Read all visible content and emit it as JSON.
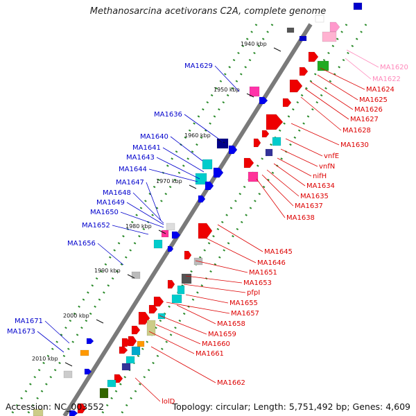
{
  "title": "Methanosarcina acetivorans C2A, complete genome",
  "accession": "Accession: NC_003552",
  "summary": "Topology: circular; Length: 5,751,492 bp; Genes: 4,609",
  "colors": {
    "blue_label": "#0000cc",
    "red_label": "#dd0000",
    "pink_label": "#ff88bb",
    "backbone": "#777777"
  },
  "ruler": [
    {
      "label": "1940 kbp"
    },
    {
      "label": "1950 kbp"
    },
    {
      "label": "1960 kbp"
    },
    {
      "label": "1970 kbp"
    },
    {
      "label": "1980 kbp"
    },
    {
      "label": "1990 kbp"
    },
    {
      "label": "2000 kbp"
    },
    {
      "label": "2010 kbp"
    }
  ],
  "left_labels": [
    "MA1629",
    "MA1636",
    "MA1640",
    "MA1641",
    "MA1643",
    "MA1644",
    "MA1647",
    "MA1648",
    "MA1649",
    "MA1650",
    "MA1652",
    "MA1656",
    "MA1671",
    "MA1673"
  ],
  "right_labels_pink": [
    "MA1620",
    "MA1622"
  ],
  "right_labels_red": [
    "MA1624",
    "MA1625",
    "MA1626",
    "MA1627",
    "MA1628",
    "MA1630",
    "vnfE",
    "vnfN",
    "nifH",
    "MA1634",
    "MA1635",
    "MA1637",
    "MA1638",
    "MA1645",
    "MA1646",
    "MA1651",
    "MA1653",
    "pfpI",
    "MA1655",
    "MA1657",
    "MA1658",
    "MA1659",
    "MA1660",
    "MA1661",
    "MA1662",
    "lolD"
  ]
}
